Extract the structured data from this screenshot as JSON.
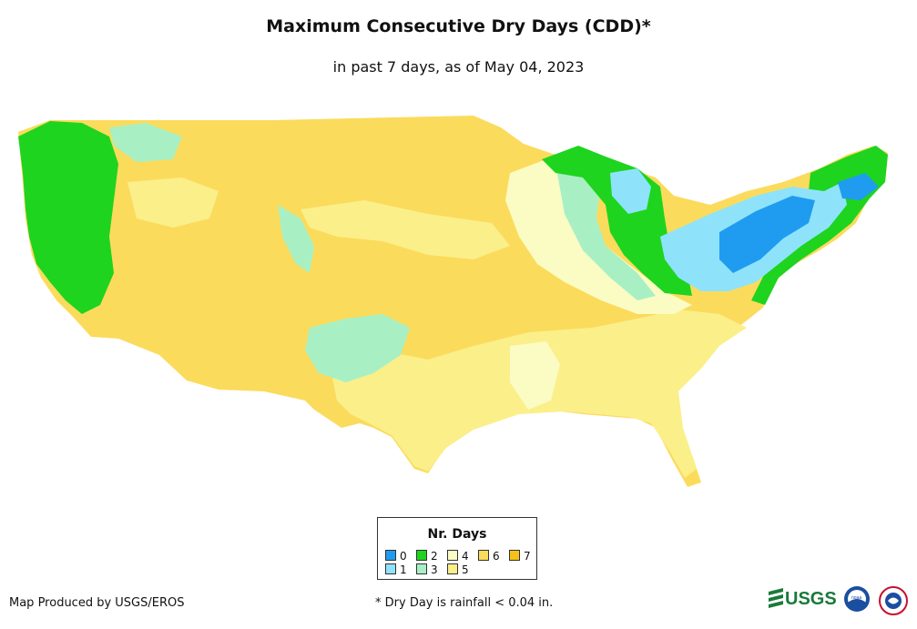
{
  "header": {
    "title": "Maximum Consecutive Dry Days (CDD)*",
    "subtitle": "in past 7 days, as of May 04, 2023"
  },
  "legend": {
    "title": "Nr. Days",
    "items": [
      {
        "label": "0",
        "color": "#1f9cf0"
      },
      {
        "label": "1",
        "color": "#8ee3fb"
      },
      {
        "label": "2",
        "color": "#1ed41e"
      },
      {
        "label": "3",
        "color": "#a8f0c4"
      },
      {
        "label": "4",
        "color": "#fbfbc4"
      },
      {
        "label": "5",
        "color": "#fbef8a"
      },
      {
        "label": "6",
        "color": "#fbdb5c"
      },
      {
        "label": "7",
        "color": "#f5c21b"
      }
    ]
  },
  "footer": {
    "credit": "Map Produced by USGS/EROS",
    "footnote": "* Dry Day is rainfall < 0.04 in.",
    "logos": [
      "USGS",
      "noaa",
      "NATIONAL WEATHER SERVICE"
    ]
  }
}
